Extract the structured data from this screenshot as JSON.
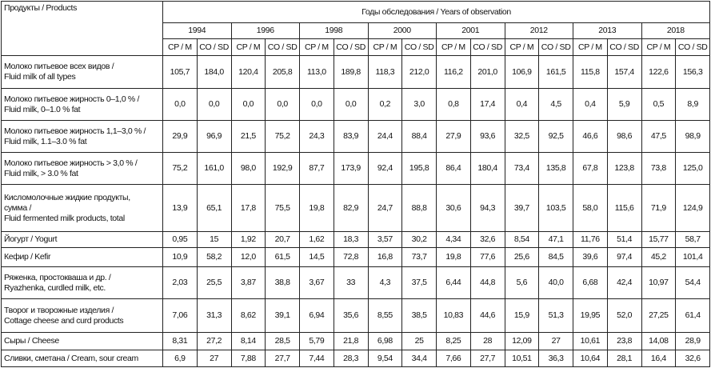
{
  "table": {
    "corner": "Продукты / Products",
    "group_header": "Годы обследования / Years of observation",
    "years": [
      "1994",
      "1996",
      "1998",
      "2000",
      "2001",
      "2012",
      "2013",
      "2018"
    ],
    "sub_columns": [
      "CP / M",
      "CO / SD"
    ],
    "rows": [
      {
        "label": [
          "Молоко питьевое всех видов /",
          "Fluid milk of all types"
        ],
        "cells": [
          "105,7",
          "184,0",
          "120,4",
          "205,8",
          "113,0",
          "189,8",
          "118,3",
          "212,0",
          "116,2",
          "201,0",
          "106,9",
          "161,5",
          "115,8",
          "157,4",
          "122,6",
          "156,3"
        ]
      },
      {
        "label": [
          "Молоко питьевое жирность 0–1,0 % /",
          "Fluid milk, 0–1.0 % fat"
        ],
        "cells": [
          "0,0",
          "0,0",
          "0,0",
          "0,0",
          "0,0",
          "0,0",
          "0,2",
          "3,0",
          "0,8",
          "17,4",
          "0,4",
          "4,5",
          "0,4",
          "5,9",
          "0,5",
          "8,9"
        ]
      },
      {
        "label": [
          "Молоко питьевое жирность 1,1–3,0 % /",
          "Fluid milk, 1.1–3.0 % fat"
        ],
        "cells": [
          "29,9",
          "96,9",
          "21,5",
          "75,2",
          "24,3",
          "83,9",
          "24,4",
          "88,4",
          "27,9",
          "93,6",
          "32,5",
          "92,5",
          "46,6",
          "98,6",
          "47,5",
          "98,9"
        ]
      },
      {
        "label": [
          "Молоко питьевое жирность > 3,0 % /",
          "Fluid milk, > 3.0 % fat"
        ],
        "cells": [
          "75,2",
          "161,0",
          "98,0",
          "192,9",
          "87,7",
          "173,9",
          "92,4",
          "195,8",
          "86,4",
          "180,4",
          "73,4",
          "135,8",
          "67,8",
          "123,8",
          "73,8",
          "125,0"
        ]
      },
      {
        "label": [
          "Кисломолочные жидкие продукты,",
          "сумма /",
          "Fluid fermented milk products, total"
        ],
        "cells": [
          "13,9",
          "65,1",
          "17,8",
          "75,5",
          "19,8",
          "82,9",
          "24,7",
          "88,8",
          "30,6",
          "94,3",
          "39,7",
          "103,5",
          "58,0",
          "115,6",
          "71,9",
          "124,9"
        ]
      },
      {
        "label": [
          "Йогурт / Yogurt"
        ],
        "cells": [
          "0,95",
          "15",
          "1,92",
          "20,7",
          "1,62",
          "18,3",
          "3,57",
          "30,2",
          "4,34",
          "32,6",
          "8,54",
          "47,1",
          "11,76",
          "51,4",
          "15,77",
          "58,7"
        ]
      },
      {
        "label": [
          "Кефир / Kefir"
        ],
        "cells": [
          "10,9",
          "58,2",
          "12,0",
          "61,5",
          "14,5",
          "72,8",
          "16,8",
          "73,7",
          "19,8",
          "77,6",
          "25,6",
          "84,5",
          "39,6",
          "97,4",
          "45,2",
          "101,4"
        ]
      },
      {
        "label": [
          "Ряженка, простокваша и др. /",
          "Ryazhenka, curdled milk, etc."
        ],
        "cells": [
          "2,03",
          "25,5",
          "3,87",
          "38,8",
          "3,67",
          "33",
          "4,3",
          "37,5",
          "6,44",
          "44,8",
          "5,6",
          "40,0",
          "6,68",
          "42,4",
          "10,97",
          "54,4"
        ]
      },
      {
        "label": [
          "Творог и творожные изделия /",
          "Cottage cheese and curd products"
        ],
        "cells": [
          "7,06",
          "31,3",
          "8,62",
          "39,1",
          "6,94",
          "35,6",
          "8,55",
          "38,5",
          "10,83",
          "44,6",
          "15,9",
          "51,3",
          "19,95",
          "52,0",
          "27,25",
          "61,4"
        ]
      },
      {
        "label": [
          "Сыры / Cheese"
        ],
        "cells": [
          "8,31",
          "27,2",
          "8,14",
          "28,5",
          "5,79",
          "21,8",
          "6,98",
          "25",
          "8,25",
          "28",
          "12,09",
          "27",
          "10,61",
          "23,8",
          "14,08",
          "28,9"
        ]
      },
      {
        "label": [
          "Сливки, сметана / Cream, sour cream"
        ],
        "cells": [
          "6,9",
          "27",
          "7,88",
          "27,7",
          "7,44",
          "28,3",
          "9,54",
          "34,4",
          "7,66",
          "27,7",
          "10,51",
          "36,3",
          "10,64",
          "28,1",
          "16,4",
          "32,6"
        ]
      }
    ]
  }
}
